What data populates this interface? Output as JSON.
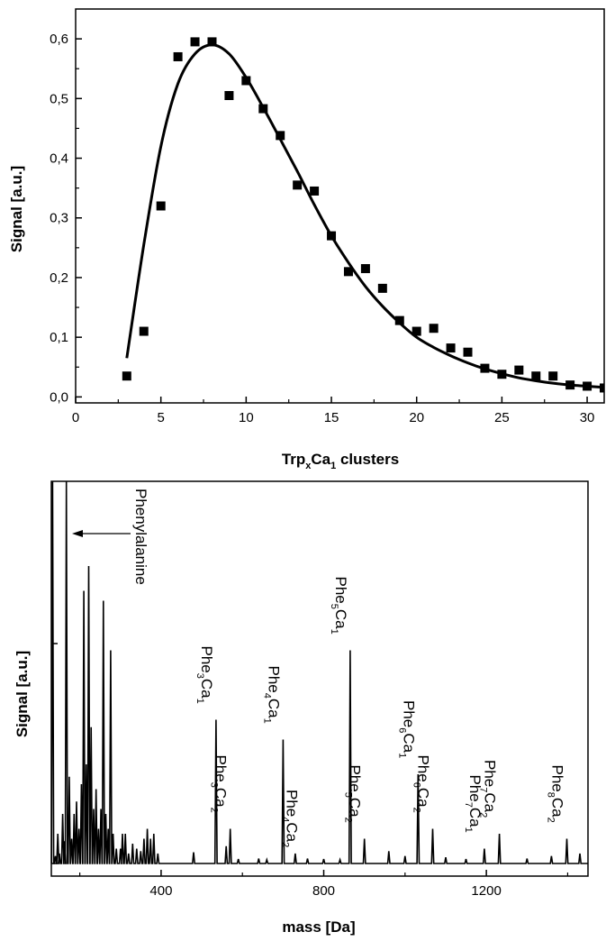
{
  "chart_data": [
    {
      "type": "scatter",
      "xlabel_main": "Trp",
      "xlabel_sub1": "x",
      "xlabel_mid": "Ca",
      "xlabel_sub2": "1",
      "xlabel_tail": " clusters",
      "ylabel": "Signal [a.u.]",
      "xlim": [
        0,
        31
      ],
      "ylim": [
        -0.01,
        0.65
      ],
      "xticks": [
        0,
        5,
        10,
        15,
        20,
        25,
        30
      ],
      "xtick_labels": [
        "0",
        "5",
        "10",
        "15",
        "20",
        "25",
        "30"
      ],
      "yticks": [
        0.0,
        0.1,
        0.2,
        0.3,
        0.4,
        0.5,
        0.6
      ],
      "ytick_labels": [
        "0,0",
        "0,1",
        "0,2",
        "0,3",
        "0,4",
        "0,5",
        "0,6"
      ],
      "series": [
        {
          "kind": "scatter",
          "marker": "square",
          "points": [
            [
              3,
              0.035
            ],
            [
              4,
              0.11
            ],
            [
              5,
              0.32
            ],
            [
              6,
              0.57
            ],
            [
              7,
              0.595
            ],
            [
              8,
              0.595
            ],
            [
              9,
              0.505
            ],
            [
              10,
              0.53
            ],
            [
              11,
              0.483
            ],
            [
              12,
              0.438
            ],
            [
              13,
              0.355
            ],
            [
              14,
              0.345
            ],
            [
              15,
              0.27
            ],
            [
              16,
              0.21
            ],
            [
              17,
              0.215
            ],
            [
              18,
              0.182
            ],
            [
              19,
              0.128
            ],
            [
              20,
              0.11
            ],
            [
              21,
              0.115
            ],
            [
              22,
              0.082
            ],
            [
              23,
              0.075
            ],
            [
              24,
              0.048
            ],
            [
              25,
              0.038
            ],
            [
              26,
              0.045
            ],
            [
              27,
              0.035
            ],
            [
              28,
              0.035
            ],
            [
              29,
              0.02
            ],
            [
              30,
              0.018
            ],
            [
              31,
              0.015
            ]
          ]
        },
        {
          "kind": "line",
          "points": [
            [
              3,
              0.065
            ],
            [
              4,
              0.255
            ],
            [
              5,
              0.42
            ],
            [
              6,
              0.525
            ],
            [
              7,
              0.575
            ],
            [
              8,
              0.59
            ],
            [
              9,
              0.575
            ],
            [
              10,
              0.535
            ],
            [
              11,
              0.485
            ],
            [
              12,
              0.432
            ],
            [
              13,
              0.378
            ],
            [
              14,
              0.322
            ],
            [
              15,
              0.27
            ],
            [
              16,
              0.225
            ],
            [
              17,
              0.185
            ],
            [
              18,
              0.152
            ],
            [
              19,
              0.124
            ],
            [
              20,
              0.1
            ],
            [
              21,
              0.083
            ],
            [
              22,
              0.069
            ],
            [
              23,
              0.057
            ],
            [
              24,
              0.047
            ],
            [
              25,
              0.039
            ],
            [
              26,
              0.032
            ],
            [
              27,
              0.027
            ],
            [
              28,
              0.023
            ],
            [
              29,
              0.02
            ],
            [
              30,
              0.018
            ],
            [
              31,
              0.016
            ]
          ]
        }
      ]
    },
    {
      "type": "line",
      "xlabel": "mass [Da]",
      "ylabel": "Signal [a.u.]",
      "xlim": [
        130,
        1450
      ],
      "xticks": [
        400,
        800,
        1200
      ],
      "xtick_labels": [
        "400",
        "800",
        "1200"
      ],
      "ylim": [
        0,
        1.55
      ],
      "peaks": [
        [
          133,
          1.55
        ],
        [
          140,
          0.03
        ],
        [
          146,
          0.12
        ],
        [
          150,
          0.04
        ],
        [
          158,
          0.2
        ],
        [
          163,
          0.09
        ],
        [
          167,
          1.55
        ],
        [
          174,
          0.35
        ],
        [
          180,
          0.1
        ],
        [
          186,
          0.2
        ],
        [
          192,
          0.25
        ],
        [
          198,
          0.14
        ],
        [
          204,
          0.32
        ],
        [
          210,
          1.1
        ],
        [
          216,
          0.4
        ],
        [
          222,
          1.2
        ],
        [
          228,
          0.55
        ],
        [
          234,
          0.22
        ],
        [
          240,
          0.3
        ],
        [
          246,
          0.14
        ],
        [
          252,
          0.22
        ],
        [
          258,
          1.06
        ],
        [
          264,
          0.2
        ],
        [
          270,
          0.14
        ],
        [
          276,
          0.86
        ],
        [
          282,
          0.12
        ],
        [
          290,
          0.06
        ],
        [
          300,
          0.06
        ],
        [
          305,
          0.12
        ],
        [
          312,
          0.12
        ],
        [
          320,
          0.04
        ],
        [
          330,
          0.08
        ],
        [
          340,
          0.06
        ],
        [
          350,
          0.05
        ],
        [
          358,
          0.1
        ],
        [
          366,
          0.14
        ],
        [
          374,
          0.1
        ],
        [
          382,
          0.12
        ],
        [
          392,
          0.04
        ],
        [
          480,
          0.045
        ],
        [
          535,
          0.58
        ],
        [
          560,
          0.07
        ],
        [
          570,
          0.14
        ],
        [
          590,
          0.018
        ],
        [
          640,
          0.02
        ],
        [
          660,
          0.015
        ],
        [
          700,
          0.5
        ],
        [
          730,
          0.04
        ],
        [
          760,
          0.02
        ],
        [
          800,
          0.018
        ],
        [
          840,
          0.015
        ],
        [
          865,
          0.86
        ],
        [
          900,
          0.1
        ],
        [
          960,
          0.05
        ],
        [
          1000,
          0.03
        ],
        [
          1032,
          0.36
        ],
        [
          1068,
          0.14
        ],
        [
          1100,
          0.025
        ],
        [
          1150,
          0.018
        ],
        [
          1195,
          0.06
        ],
        [
          1232,
          0.12
        ],
        [
          1300,
          0.02
        ],
        [
          1360,
          0.03
        ],
        [
          1398,
          0.1
        ],
        [
          1430,
          0.04
        ]
      ],
      "labels": [
        {
          "base": "Phe",
          "s1": "3",
          "mid": "Ca",
          "s2": "1",
          "x": 535
        },
        {
          "base": "Phe",
          "s1": "3",
          "mid": "Ca",
          "s2": "2",
          "x": 570
        },
        {
          "base": "Phe",
          "s1": "4",
          "mid": "Ca",
          "s2": "1",
          "x": 700
        },
        {
          "base": "Phe",
          "s1": "4",
          "mid": "Ca",
          "s2": "2",
          "x": 745
        },
        {
          "base": "Phe",
          "s1": "5",
          "mid": "Ca",
          "s2": "1",
          "x": 865
        },
        {
          "base": "Phe",
          "s1": "5",
          "mid": "Ca",
          "s2": "2",
          "x": 900
        },
        {
          "base": "Phe",
          "s1": "6",
          "mid": "Ca",
          "s2": "1",
          "x": 1032
        },
        {
          "base": "Phe",
          "s1": "6",
          "mid": "Ca",
          "s2": "2",
          "x": 1068
        },
        {
          "base": "Phe",
          "s1": "7",
          "mid": "Ca",
          "s2": "1",
          "x": 1195
        },
        {
          "base": "Phe",
          "s1": "7",
          "mid": "Ca",
          "s2": "2",
          "x": 1232
        },
        {
          "base": "Phe",
          "s1": "8",
          "mid": "Ca",
          "s2": "2",
          "x": 1398
        }
      ],
      "annotation": "Phenylalanine"
    }
  ]
}
